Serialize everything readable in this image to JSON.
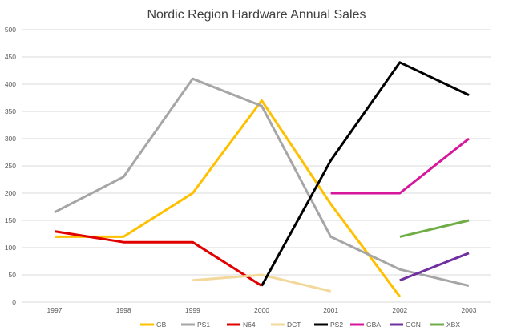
{
  "chart_data": {
    "type": "line",
    "title": "Nordic Region Hardware Annual Sales",
    "xlabel": "",
    "ylabel": "",
    "categories": [
      "1997",
      "1998",
      "1999",
      "2000",
      "2001",
      "2002",
      "2003"
    ],
    "ylim": [
      0,
      500
    ],
    "yticks": [
      0,
      50,
      100,
      150,
      200,
      250,
      300,
      350,
      400,
      450,
      500
    ],
    "grid": true,
    "legend_position": "bottom",
    "series": [
      {
        "name": "GB",
        "color": "#FFC000",
        "values": [
          120,
          120,
          200,
          370,
          180,
          10,
          null
        ]
      },
      {
        "name": "PS1",
        "color": "#A6A6A6",
        "values": [
          165,
          230,
          410,
          360,
          120,
          60,
          30
        ]
      },
      {
        "name": "N64",
        "color": "#E00000",
        "values": [
          130,
          110,
          110,
          30,
          null,
          null,
          null
        ]
      },
      {
        "name": "DCT",
        "color": "#F2D89A",
        "values": [
          null,
          null,
          40,
          50,
          20,
          null,
          null
        ]
      },
      {
        "name": "PS2",
        "color": "#000000",
        "values": [
          null,
          null,
          null,
          30,
          260,
          440,
          380
        ]
      },
      {
        "name": "GBA",
        "color": "#D6169B",
        "values": [
          null,
          null,
          null,
          null,
          200,
          200,
          300
        ]
      },
      {
        "name": "GCN",
        "color": "#7030A0",
        "values": [
          null,
          null,
          null,
          null,
          null,
          40,
          90
        ]
      },
      {
        "name": "XBX",
        "color": "#70AD47",
        "values": [
          null,
          null,
          null,
          null,
          null,
          120,
          150
        ]
      }
    ]
  }
}
